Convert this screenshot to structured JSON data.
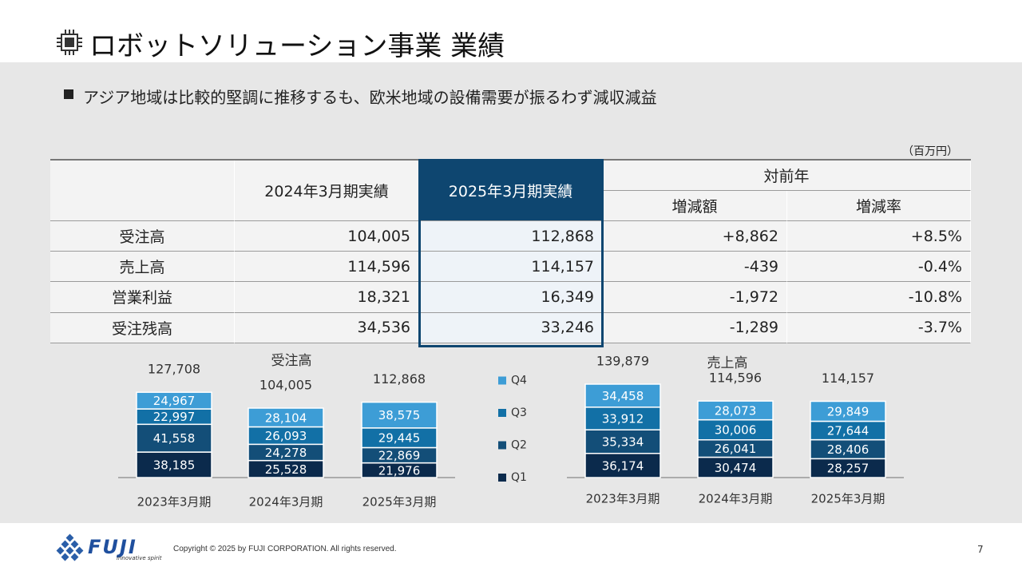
{
  "header": {
    "title": "ロボットソリューション事業 業績",
    "bullet": "アジア地域は比較的堅調に推移するも、欧米地域の設備需要が振るわず減収減益"
  },
  "table": {
    "unit": "（百万円）",
    "headers": [
      "2024年3月期実績",
      "2025年3月期実績"
    ],
    "group_header": "対前年",
    "sub_headers": [
      "増減額",
      "増減率"
    ],
    "rows": [
      [
        "受注高",
        "104,005",
        "112,868",
        "+8,862",
        "+8.5%"
      ],
      [
        "売上高",
        "114,596",
        "114,157",
        "-439",
        "-0.4%"
      ],
      [
        "営業利益",
        "18,321",
        "16,349",
        "-1,972",
        "-10.8%"
      ],
      [
        "受注残高",
        "34,536",
        "33,246",
        "-1,289",
        "-3.7%"
      ]
    ]
  },
  "chart_data": [
    {
      "type": "bar",
      "stacked": true,
      "title": "受注高",
      "categories": [
        "2023年3月期",
        "2024年3月期",
        "2025年3月期"
      ],
      "totals": [
        127708,
        104005,
        112868
      ],
      "total_labels": [
        "127,708",
        "104,005",
        "112,868"
      ],
      "series": [
        {
          "name": "Q1",
          "color": "#0b2a4c",
          "values": [
            38185,
            25528,
            21976
          ],
          "value_labels": [
            "38,185",
            "25,528",
            "21,976"
          ]
        },
        {
          "name": "Q2",
          "color": "#134e78",
          "values": [
            41558,
            24278,
            22869
          ],
          "value_labels": [
            "41,558",
            "24,278",
            "22,869"
          ]
        },
        {
          "name": "Q3",
          "color": "#1270a6",
          "values": [
            22997,
            26093,
            29445
          ],
          "value_labels": [
            "22,997",
            "26,093",
            "29,445"
          ]
        },
        {
          "name": "Q4",
          "color": "#3d9dd6",
          "values": [
            24967,
            28104,
            38575
          ],
          "value_labels": [
            "24,967",
            "28,104",
            "38,575"
          ]
        }
      ]
    },
    {
      "type": "bar",
      "stacked": true,
      "title": "売上高",
      "categories": [
        "2023年3月期",
        "2024年3月期",
        "2025年3月期"
      ],
      "totals": [
        139879,
        114596,
        114157
      ],
      "total_labels": [
        "139,879",
        "114,596",
        "114,157"
      ],
      "series": [
        {
          "color": "#0b2a4c",
          "values": [
            36174,
            30474,
            28257
          ],
          "value_labels": [
            "36,174",
            "30,474",
            "28,257"
          ]
        },
        {
          "color": "#134e78",
          "values": [
            35334,
            26041,
            28406
          ],
          "value_labels": [
            "35,334",
            "26,041",
            "28,406"
          ]
        },
        {
          "color": "#1270a6",
          "values": [
            33912,
            30006,
            27644
          ],
          "value_labels": [
            "33,912",
            "30,006",
            "27,644"
          ]
        },
        {
          "color": "#3d9dd6",
          "values": [
            34458,
            28073,
            29849
          ],
          "value_labels": [
            "34,458",
            "28,073",
            "29,849"
          ]
        }
      ]
    }
  ],
  "footer": {
    "logo": "FUJI",
    "tagline": "innovative spirit",
    "copyright": "Copyright © 2025 by FUJI CORPORATION. All rights reserved.",
    "page": 7
  }
}
